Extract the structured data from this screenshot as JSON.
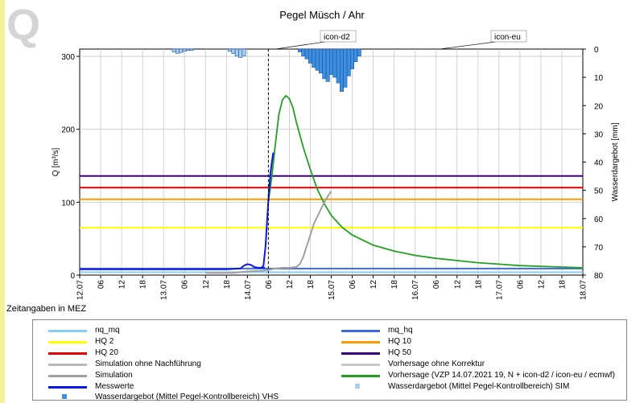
{
  "logo_letter": "Q",
  "colors": {
    "nq_mq": "#87cefa",
    "mq_hq": "#4169e1",
    "hq2": "#ffff00",
    "hq10": "#ff9900",
    "hq20": "#e00000",
    "hq50": "#3a0080",
    "sim_ohne": "#b8b8b8",
    "vorhersage_ohne": "#c8c8c8",
    "simulation": "#a0a0a0",
    "vorhersage": "#22a022",
    "messwerte": "#0b16e6",
    "wasser_vhs": "#3d8fe0",
    "wasser_sim": "#a8cff0"
  },
  "chart_data": {
    "type": "line",
    "title": "Pegel Müsch / Ahr",
    "ylabel": "Q [m³/s]",
    "y2label": "Wasserdargebot [mm]",
    "xlabel": "Zeitangaben in MEZ",
    "ylim": [
      0,
      310
    ],
    "y2lim": [
      0,
      80
    ],
    "y_ticks": [
      0,
      100,
      200,
      300
    ],
    "y2_ticks": [
      0,
      10,
      20,
      30,
      40,
      50,
      60,
      70,
      80
    ],
    "x_range_hours": [
      0,
      144
    ],
    "x_tick_labels": [
      "12.07",
      "06",
      "12",
      "18",
      "13.07",
      "06",
      "12",
      "18",
      "14.07",
      "06",
      "12",
      "18",
      "15.07",
      "06",
      "12",
      "18",
      "16.07",
      "06",
      "12",
      "18",
      "17.07",
      "06",
      "12",
      "18",
      "18.07"
    ],
    "grid": true,
    "forecast_hour": 54,
    "annotations": [
      {
        "text": "icon-d2",
        "x_hour": 56
      },
      {
        "text": "icon-eu",
        "x_hour": 103
      }
    ],
    "thresholds": [
      {
        "name": "nq_mq",
        "value": 4
      },
      {
        "name": "mq_hq",
        "value": 9
      },
      {
        "name": "HQ 2",
        "value": 65
      },
      {
        "name": "HQ 10",
        "value": 104
      },
      {
        "name": "HQ 20",
        "value": 120
      },
      {
        "name": "HQ 50",
        "value": 136
      }
    ],
    "series": [
      {
        "name": "Messwerte",
        "x": [
          0,
          6,
          12,
          18,
          24,
          30,
          36,
          42,
          46,
          47,
          48,
          49,
          50,
          51,
          51.5,
          52,
          52.5,
          53
        ],
        "values": [
          8,
          8,
          8,
          8,
          8,
          8,
          8,
          8,
          9,
          13,
          15,
          14,
          11,
          10,
          10,
          10,
          10,
          10
        ]
      },
      {
        "name": "Vorhersage (VZP 14.07.2021 19, N + icon-d2 / icon-eu / ecmwf)",
        "x": [
          54,
          55,
          56,
          57,
          58,
          59,
          60,
          61,
          62,
          64,
          66,
          68,
          70,
          72,
          75,
          78,
          84,
          90,
          96,
          102,
          108,
          114,
          120,
          126,
          132,
          138,
          144
        ],
        "values": [
          100,
          135,
          180,
          220,
          240,
          246,
          242,
          230,
          210,
          175,
          145,
          118,
          98,
          82,
          66,
          55,
          41,
          33,
          27,
          23,
          20,
          17,
          15,
          13,
          12,
          11,
          10
        ]
      },
      {
        "name": "Simulation",
        "x": [
          36,
          40,
          44,
          48,
          52,
          54,
          56,
          58,
          60,
          62,
          63,
          64,
          65,
          66,
          67,
          68,
          69,
          70,
          71,
          72
        ],
        "values": [
          3,
          3,
          3,
          5,
          6,
          7,
          9,
          10,
          10,
          11,
          15,
          25,
          40,
          55,
          70,
          80,
          90,
          100,
          108,
          115
        ]
      }
    ],
    "wasserdargebot_bars": [
      {
        "x_hour": 27,
        "mm": 1.0
      },
      {
        "x_hour": 28,
        "mm": 1.5
      },
      {
        "x_hour": 29,
        "mm": 1.2
      },
      {
        "x_hour": 30,
        "mm": 0.8
      },
      {
        "x_hour": 31,
        "mm": 0.5
      },
      {
        "x_hour": 32,
        "mm": 0.5
      },
      {
        "x_hour": 43,
        "mm": 0.8
      },
      {
        "x_hour": 44,
        "mm": 1.6
      },
      {
        "x_hour": 45,
        "mm": 2.5
      },
      {
        "x_hour": 46,
        "mm": 3.0
      },
      {
        "x_hour": 47,
        "mm": 2.4
      },
      {
        "x_hour": 63,
        "mm": 1.0
      },
      {
        "x_hour": 64,
        "mm": 2.5
      },
      {
        "x_hour": 65,
        "mm": 3.5
      },
      {
        "x_hour": 66,
        "mm": 5.0
      },
      {
        "x_hour": 67,
        "mm": 6.5
      },
      {
        "x_hour": 68,
        "mm": 7.5
      },
      {
        "x_hour": 69,
        "mm": 8.5
      },
      {
        "x_hour": 70,
        "mm": 10.5
      },
      {
        "x_hour": 71,
        "mm": 11.5
      },
      {
        "x_hour": 72,
        "mm": 9.0
      },
      {
        "x_hour": 73,
        "mm": 10.0
      },
      {
        "x_hour": 74,
        "mm": 12.0
      },
      {
        "x_hour": 75,
        "mm": 15.0
      },
      {
        "x_hour": 76,
        "mm": 13.5
      },
      {
        "x_hour": 77,
        "mm": 9.5
      },
      {
        "x_hour": 78,
        "mm": 7.0
      },
      {
        "x_hour": 79,
        "mm": 4.5
      },
      {
        "x_hour": 80,
        "mm": 2.5
      }
    ]
  },
  "legend": [
    {
      "label": "nq_mq",
      "color": "#87cefa",
      "kind": "line"
    },
    {
      "label": "mq_hq",
      "color": "#4169e1",
      "kind": "line"
    },
    {
      "label": "HQ 2",
      "color": "#ffff00",
      "kind": "line"
    },
    {
      "label": "HQ 10",
      "color": "#ff9900",
      "kind": "line"
    },
    {
      "label": "HQ 20",
      "color": "#e00000",
      "kind": "line"
    },
    {
      "label": "HQ 50",
      "color": "#3a0080",
      "kind": "line"
    },
    {
      "label": "Simulation ohne Nachführung",
      "color": "#b8b8b8",
      "kind": "line"
    },
    {
      "label": "Vorhersage ohne Korrektur",
      "color": "#c8c8c8",
      "kind": "line"
    },
    {
      "label": "Simulation",
      "color": "#a0a0a0",
      "kind": "line"
    },
    {
      "label": "Vorhersage (VZP 14.07.2021 19, N + icon-d2 / icon-eu / ecmwf)",
      "color": "#22a022",
      "kind": "line"
    },
    {
      "label": "Messwerte",
      "color": "#0b16e6",
      "kind": "line"
    },
    {
      "label": "Wasserdargebot (Mittel Pegel-Kontrollbereich) SIM",
      "color": "#a8cff0",
      "kind": "square"
    },
    {
      "label": "Wasserdargebot (Mittel Pegel-Kontrollbereich) VHS",
      "color": "#3d8fe0",
      "kind": "square"
    }
  ]
}
